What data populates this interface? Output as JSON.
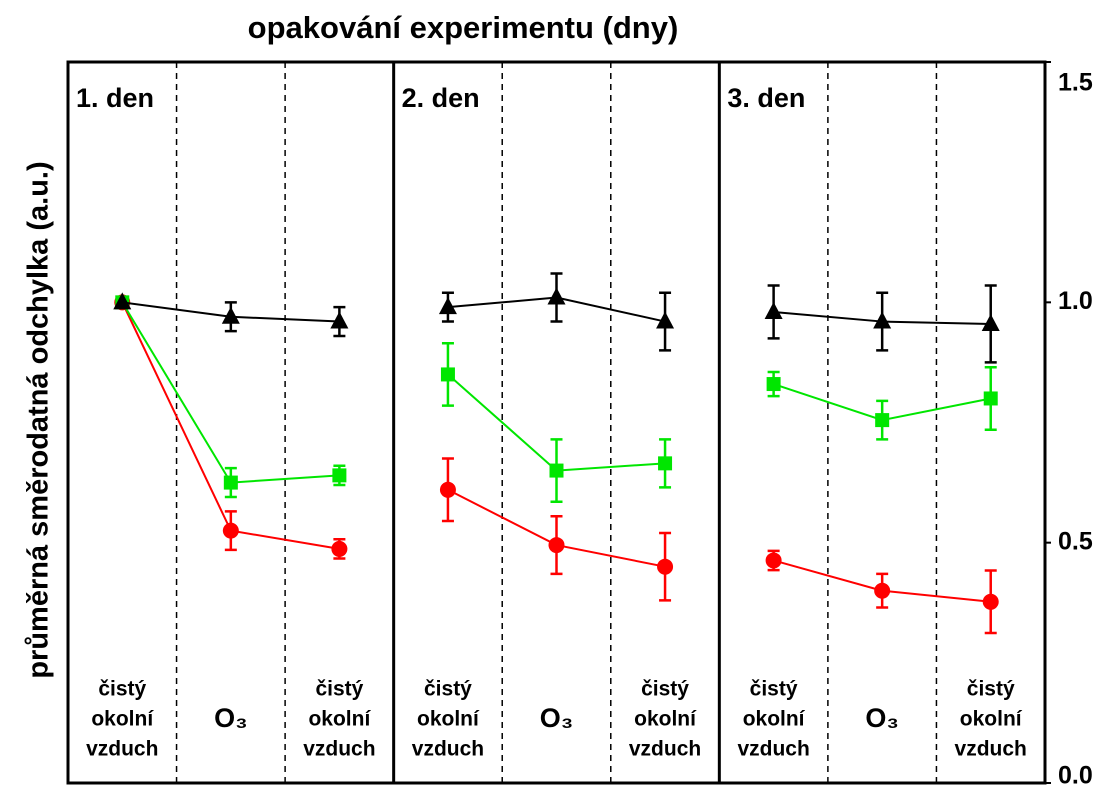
{
  "chart_data": {
    "type": "line",
    "title": "opakování experimentu (dny)",
    "ylabel": "průměrná směrodatná odchylka (a.u.)",
    "ylim": [
      0,
      1.5
    ],
    "yticks": [
      {
        "value": 0,
        "label": "0.0"
      },
      0.5,
      {
        "value": 1,
        "label": "1.0"
      },
      1.5
    ],
    "panels": [
      {
        "label": "1. den",
        "categories": [
          [
            "čistý",
            "okolní",
            "vzduch"
          ],
          [
            "O₃"
          ],
          [
            "čistý",
            "okolní",
            "vzduch"
          ]
        ],
        "series": [
          {
            "color": "#ff0000",
            "marker": "circle",
            "values": [
              1.0,
              0.525,
              0.487
            ],
            "errors": [
              0,
              0.04,
              0.02
            ]
          },
          {
            "color": "#00e600",
            "marker": "square",
            "values": [
              1.0,
              0.625,
              0.64
            ],
            "errors": [
              0,
              0.03,
              0.02
            ]
          },
          {
            "color": "#000000",
            "marker": "triangle",
            "values": [
              1.0,
              0.97,
              0.96
            ],
            "errors": [
              0,
              0.03,
              0.03
            ]
          }
        ]
      },
      {
        "label": "2. den",
        "categories": [
          [
            "čistý",
            "okolní",
            "vzduch"
          ],
          [
            "O₃"
          ],
          [
            "čistý",
            "okolní",
            "vzduch"
          ]
        ],
        "series": [
          {
            "color": "#ff0000",
            "marker": "circle",
            "values": [
              0.61,
              0.495,
              0.45
            ],
            "errors": [
              0.065,
              0.06,
              0.07
            ]
          },
          {
            "color": "#00e600",
            "marker": "square",
            "values": [
              0.85,
              0.65,
              0.665
            ],
            "errors": [
              0.065,
              0.065,
              0.05
            ]
          },
          {
            "color": "#000000",
            "marker": "triangle",
            "values": [
              0.99,
              1.01,
              0.96
            ],
            "errors": [
              0.03,
              0.05,
              0.06
            ]
          }
        ]
      },
      {
        "label": "3. den",
        "categories": [
          [
            "čistý",
            "okolní",
            "vzduch"
          ],
          [
            "O₃"
          ],
          [
            "čistý",
            "okolní",
            "vzduch"
          ]
        ],
        "series": [
          {
            "color": "#ff0000",
            "marker": "circle",
            "values": [
              0.463,
              0.4,
              0.377
            ],
            "errors": [
              0.02,
              0.035,
              0.065
            ]
          },
          {
            "color": "#00e600",
            "marker": "square",
            "values": [
              0.83,
              0.755,
              0.8
            ],
            "errors": [
              0.025,
              0.04,
              0.065
            ]
          },
          {
            "color": "#000000",
            "marker": "triangle",
            "values": [
              0.98,
              0.96,
              0.955
            ],
            "errors": [
              0.055,
              0.06,
              0.08
            ]
          }
        ]
      }
    ]
  }
}
